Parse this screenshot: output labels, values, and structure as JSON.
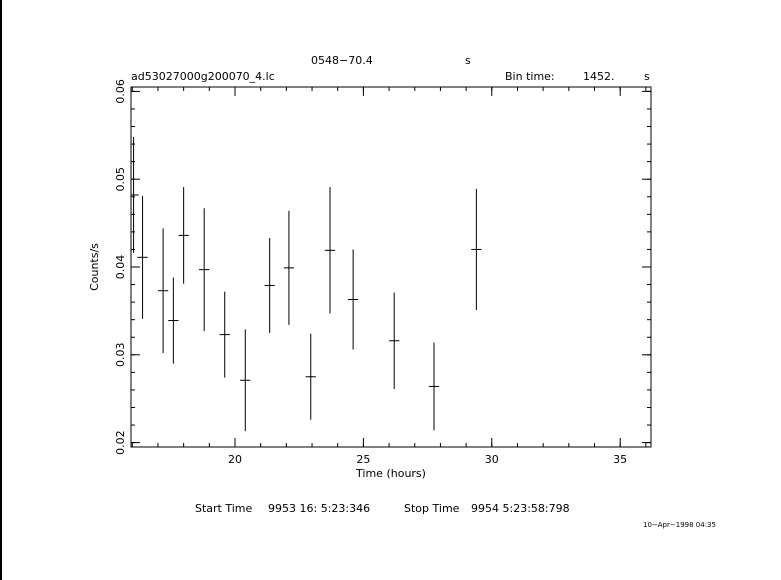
{
  "header": {
    "source": "0548−70.4",
    "source_unit": "s",
    "filename": "ad53027000g200070_4.lc",
    "bin_label": "Bin time:",
    "bin_value": "1452.",
    "bin_unit": "s"
  },
  "footer": {
    "start_label": "Start Time",
    "start_value": "9953 16: 5:23:346",
    "stop_label": "Stop Time",
    "stop_value": "9954  5:23:58:798",
    "date_stamp": "10−Apr−1998 04:35"
  },
  "chart_data": {
    "type": "scatter",
    "title": "0548−70.4",
    "xlabel": "Time (hours)",
    "ylabel": "Counts/s",
    "xlim": [
      15.95,
      36.2
    ],
    "ylim": [
      0.0195,
      0.0605
    ],
    "x_ticks": [
      20,
      25,
      30,
      35
    ],
    "y_ticks": [
      0.02,
      0.03,
      0.04,
      0.05,
      0.06
    ],
    "x_tick_labels": [
      "20",
      "25",
      "30",
      "35"
    ],
    "y_tick_labels": [
      "0.02",
      "0.03",
      "0.04",
      "0.05",
      "0.06"
    ],
    "x_minor_step": 1,
    "y_minor_step": 0.002,
    "grid": false,
    "points": [
      {
        "x": 16.05,
        "y": 0.0482,
        "xerr": 0.2,
        "yerr": 0.0066
      },
      {
        "x": 16.4,
        "y": 0.0411,
        "xerr": 0.2,
        "yerr": 0.007
      },
      {
        "x": 17.2,
        "y": 0.0373,
        "xerr": 0.2,
        "yerr": 0.0071
      },
      {
        "x": 17.6,
        "y": 0.0339,
        "xerr": 0.2,
        "yerr": 0.0049
      },
      {
        "x": 18.0,
        "y": 0.0436,
        "xerr": 0.2,
        "yerr": 0.0055
      },
      {
        "x": 18.8,
        "y": 0.0397,
        "xerr": 0.2,
        "yerr": 0.007
      },
      {
        "x": 19.6,
        "y": 0.0323,
        "xerr": 0.2,
        "yerr": 0.0049
      },
      {
        "x": 20.4,
        "y": 0.0271,
        "xerr": 0.2,
        "yerr": 0.0058
      },
      {
        "x": 21.35,
        "y": 0.0379,
        "xerr": 0.2,
        "yerr": 0.0054
      },
      {
        "x": 22.1,
        "y": 0.0399,
        "xerr": 0.2,
        "yerr": 0.0065
      },
      {
        "x": 22.95,
        "y": 0.0275,
        "xerr": 0.2,
        "yerr": 0.0049
      },
      {
        "x": 23.7,
        "y": 0.0419,
        "xerr": 0.2,
        "yerr": 0.0072
      },
      {
        "x": 24.6,
        "y": 0.0363,
        "xerr": 0.2,
        "yerr": 0.0057
      },
      {
        "x": 26.2,
        "y": 0.0316,
        "xerr": 0.2,
        "yerr": 0.0055
      },
      {
        "x": 27.75,
        "y": 0.0264,
        "xerr": 0.2,
        "yerr": 0.005
      },
      {
        "x": 29.4,
        "y": 0.042,
        "xerr": 0.2,
        "yerr": 0.0069
      }
    ]
  }
}
